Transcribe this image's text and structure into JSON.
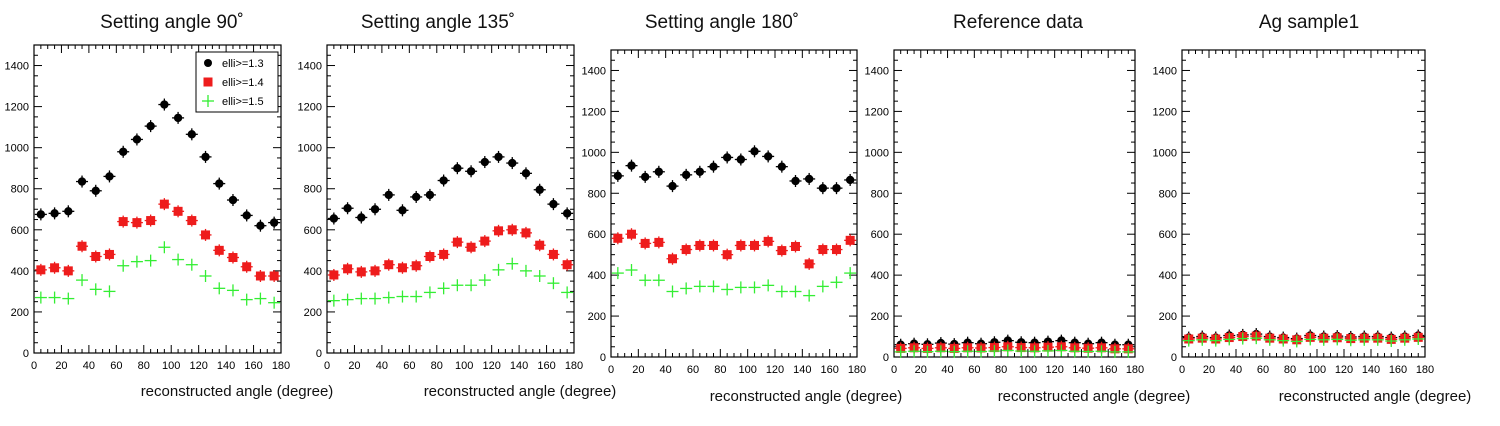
{
  "chart_data": [
    {
      "type": "scatter",
      "title": "Setting angle 90˚",
      "xlabel": "reconstructed angle (degree)",
      "ylabel": "",
      "xlim": [
        0,
        180
      ],
      "ylim": [
        0,
        1500
      ],
      "x_ticks": [
        "0",
        "20",
        "40",
        "60",
        "80",
        "100",
        "120",
        "140",
        "160",
        "180"
      ],
      "y_ticks": [
        "0",
        "200",
        "400",
        "600",
        "800",
        "1000",
        "1200",
        "1400"
      ],
      "legend": [
        "elli>=1.3",
        "elli>=1.4",
        "elli>=1.5"
      ],
      "x": [
        5,
        15,
        25,
        35,
        45,
        55,
        65,
        75,
        85,
        95,
        105,
        115,
        125,
        135,
        145,
        155,
        165,
        175
      ],
      "series": [
        {
          "name": "elli>=1.3",
          "values": [
            675,
            680,
            690,
            835,
            790,
            860,
            980,
            1040,
            1105,
            1210,
            1145,
            1065,
            955,
            825,
            745,
            670,
            620,
            635
          ]
        },
        {
          "name": "elli>=1.4",
          "values": [
            405,
            415,
            400,
            520,
            470,
            480,
            640,
            635,
            645,
            725,
            690,
            645,
            575,
            500,
            465,
            420,
            375,
            375
          ]
        },
        {
          "name": "elli>=1.5",
          "values": [
            270,
            270,
            265,
            355,
            310,
            300,
            425,
            445,
            450,
            515,
            455,
            430,
            375,
            315,
            305,
            260,
            265,
            245
          ]
        }
      ]
    },
    {
      "type": "scatter",
      "title": "Setting angle 135˚",
      "xlabel": "reconstructed angle (degree)",
      "ylabel": "",
      "xlim": [
        0,
        180
      ],
      "ylim": [
        0,
        1500
      ],
      "x_ticks": [
        "0",
        "20",
        "40",
        "60",
        "80",
        "100",
        "120",
        "140",
        "160",
        "180"
      ],
      "y_ticks": [
        "0",
        "200",
        "400",
        "600",
        "800",
        "1000",
        "1200",
        "1400"
      ],
      "x": [
        5,
        15,
        25,
        35,
        45,
        55,
        65,
        75,
        85,
        95,
        105,
        115,
        125,
        135,
        145,
        155,
        165,
        175
      ],
      "series": [
        {
          "name": "elli>=1.3",
          "values": [
            655,
            705,
            660,
            700,
            770,
            695,
            760,
            770,
            840,
            900,
            885,
            930,
            955,
            925,
            875,
            795,
            725,
            680
          ]
        },
        {
          "name": "elli>=1.4",
          "values": [
            380,
            410,
            395,
            400,
            430,
            415,
            425,
            470,
            480,
            540,
            515,
            545,
            595,
            600,
            585,
            525,
            480,
            430
          ]
        },
        {
          "name": "elli>=1.5",
          "values": [
            255,
            260,
            265,
            265,
            270,
            275,
            275,
            295,
            315,
            330,
            330,
            355,
            405,
            435,
            400,
            375,
            340,
            295
          ]
        }
      ]
    },
    {
      "type": "scatter",
      "title": "Setting angle 180˚",
      "xlabel": "reconstructed angle (degree)",
      "ylabel": "",
      "xlim": [
        0,
        180
      ],
      "ylim": [
        0,
        1500
      ],
      "x_ticks": [
        "0",
        "20",
        "40",
        "60",
        "80",
        "100",
        "120",
        "140",
        "160",
        "180"
      ],
      "y_ticks": [
        "0",
        "200",
        "400",
        "600",
        "800",
        "1000",
        "1200",
        "1400"
      ],
      "x": [
        5,
        15,
        25,
        35,
        45,
        55,
        65,
        75,
        85,
        95,
        105,
        115,
        125,
        135,
        145,
        155,
        165,
        175
      ],
      "series": [
        {
          "name": "elli>=1.3",
          "values": [
            885,
            935,
            880,
            905,
            835,
            890,
            905,
            930,
            975,
            965,
            1005,
            980,
            930,
            860,
            870,
            825,
            825,
            865
          ]
        },
        {
          "name": "elli>=1.4",
          "values": [
            580,
            600,
            555,
            560,
            480,
            525,
            545,
            545,
            500,
            545,
            545,
            565,
            520,
            540,
            455,
            525,
            525,
            570
          ]
        },
        {
          "name": "elli>=1.5",
          "values": [
            410,
            425,
            375,
            375,
            320,
            335,
            345,
            345,
            330,
            340,
            340,
            350,
            320,
            320,
            300,
            345,
            365,
            410
          ]
        }
      ]
    },
    {
      "type": "scatter",
      "title": "Reference data",
      "xlabel": "reconstructed angle (degree)",
      "ylabel": "",
      "xlim": [
        0,
        180
      ],
      "ylim": [
        0,
        1500
      ],
      "x_ticks": [
        "0",
        "20",
        "40",
        "60",
        "80",
        "100",
        "120",
        "140",
        "160",
        "180"
      ],
      "y_ticks": [
        "0",
        "200",
        "400",
        "600",
        "800",
        "1000",
        "1200",
        "1400"
      ],
      "x": [
        5,
        15,
        25,
        35,
        45,
        55,
        65,
        75,
        85,
        95,
        105,
        115,
        125,
        135,
        145,
        155,
        165,
        175
      ],
      "series": [
        {
          "name": "elli>=1.3",
          "values": [
            60,
            65,
            62,
            68,
            63,
            70,
            65,
            72,
            80,
            72,
            70,
            75,
            80,
            70,
            65,
            70,
            60,
            60
          ]
        },
        {
          "name": "elli>=1.4",
          "values": [
            42,
            45,
            42,
            45,
            42,
            45,
            44,
            46,
            50,
            46,
            45,
            48,
            50,
            45,
            43,
            45,
            40,
            40
          ]
        },
        {
          "name": "elli>=1.5",
          "values": [
            25,
            28,
            26,
            28,
            26,
            28,
            27,
            29,
            32,
            29,
            28,
            30,
            32,
            28,
            27,
            28,
            25,
            25
          ]
        }
      ]
    },
    {
      "type": "scatter",
      "title": "Ag sample1",
      "xlabel": "reconstructed angle (degree)",
      "ylabel": "",
      "xlim": [
        0,
        180
      ],
      "ylim": [
        0,
        1500
      ],
      "x_ticks": [
        "0",
        "20",
        "40",
        "60",
        "80",
        "100",
        "120",
        "140",
        "160",
        "180"
      ],
      "y_ticks": [
        "0",
        "200",
        "400",
        "600",
        "800",
        "1000",
        "1200",
        "1400"
      ],
      "x": [
        5,
        15,
        25,
        35,
        45,
        55,
        65,
        75,
        85,
        95,
        105,
        115,
        125,
        135,
        145,
        155,
        165,
        175
      ],
      "series": [
        {
          "name": "elli>=1.3",
          "values": [
            95,
            100,
            95,
            105,
            108,
            112,
            100,
            95,
            90,
            105,
            100,
            102,
            98,
            100,
            100,
            95,
            100,
            105
          ]
        },
        {
          "name": "elli>=1.4",
          "values": [
            88,
            92,
            88,
            95,
            100,
            102,
            92,
            88,
            84,
            96,
            92,
            94,
            90,
            92,
            92,
            86,
            92,
            96
          ]
        },
        {
          "name": "elli>=1.5",
          "values": [
            80,
            84,
            80,
            86,
            90,
            92,
            84,
            80,
            76,
            86,
            84,
            86,
            82,
            84,
            84,
            78,
            84,
            88
          ]
        }
      ]
    }
  ],
  "colors": {
    "elli>=1.3": "#000000",
    "elli>=1.4": "#ee1c1c",
    "elli>=1.5": "#33ee33",
    "axis": "#000000"
  }
}
